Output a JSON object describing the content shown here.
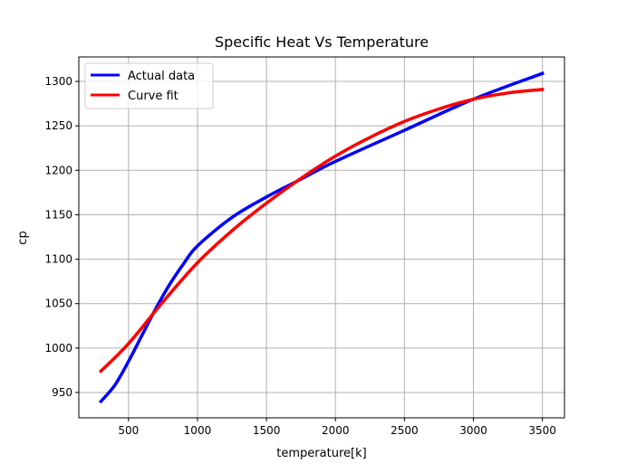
{
  "chart_data": {
    "type": "line",
    "title": "Specific Heat Vs Temperature",
    "xlabel": "temperature[k]",
    "ylabel": "cp",
    "xlim": [
      140,
      3660
    ],
    "ylim": [
      921.5,
      1327.5
    ],
    "xticks": [
      500,
      1000,
      1500,
      2000,
      2500,
      3000,
      3500
    ],
    "yticks": [
      950,
      1000,
      1050,
      1100,
      1150,
      1200,
      1250,
      1300
    ],
    "grid": true,
    "legend_position": "top-left",
    "series": [
      {
        "name": "Actual data",
        "color": "#0000ff",
        "x": [
          300,
          400,
          500,
          600,
          700,
          800,
          900,
          1000,
          1250,
          1500,
          1750,
          2000,
          2500,
          3000,
          3500
        ],
        "y": [
          940,
          958,
          985,
          1015,
          1045,
          1072,
          1095,
          1115,
          1147,
          1170,
          1190,
          1210,
          1245,
          1280,
          1309
        ]
      },
      {
        "name": "Curve fit",
        "color": "#ff0000",
        "x": [
          300,
          500,
          750,
          1000,
          1250,
          1500,
          1750,
          2000,
          2250,
          2500,
          2750,
          3000,
          3250,
          3500
        ],
        "y": [
          974,
          1005,
          1052,
          1096,
          1132,
          1163,
          1191,
          1216,
          1237,
          1255,
          1269,
          1280,
          1287,
          1291
        ]
      }
    ]
  }
}
